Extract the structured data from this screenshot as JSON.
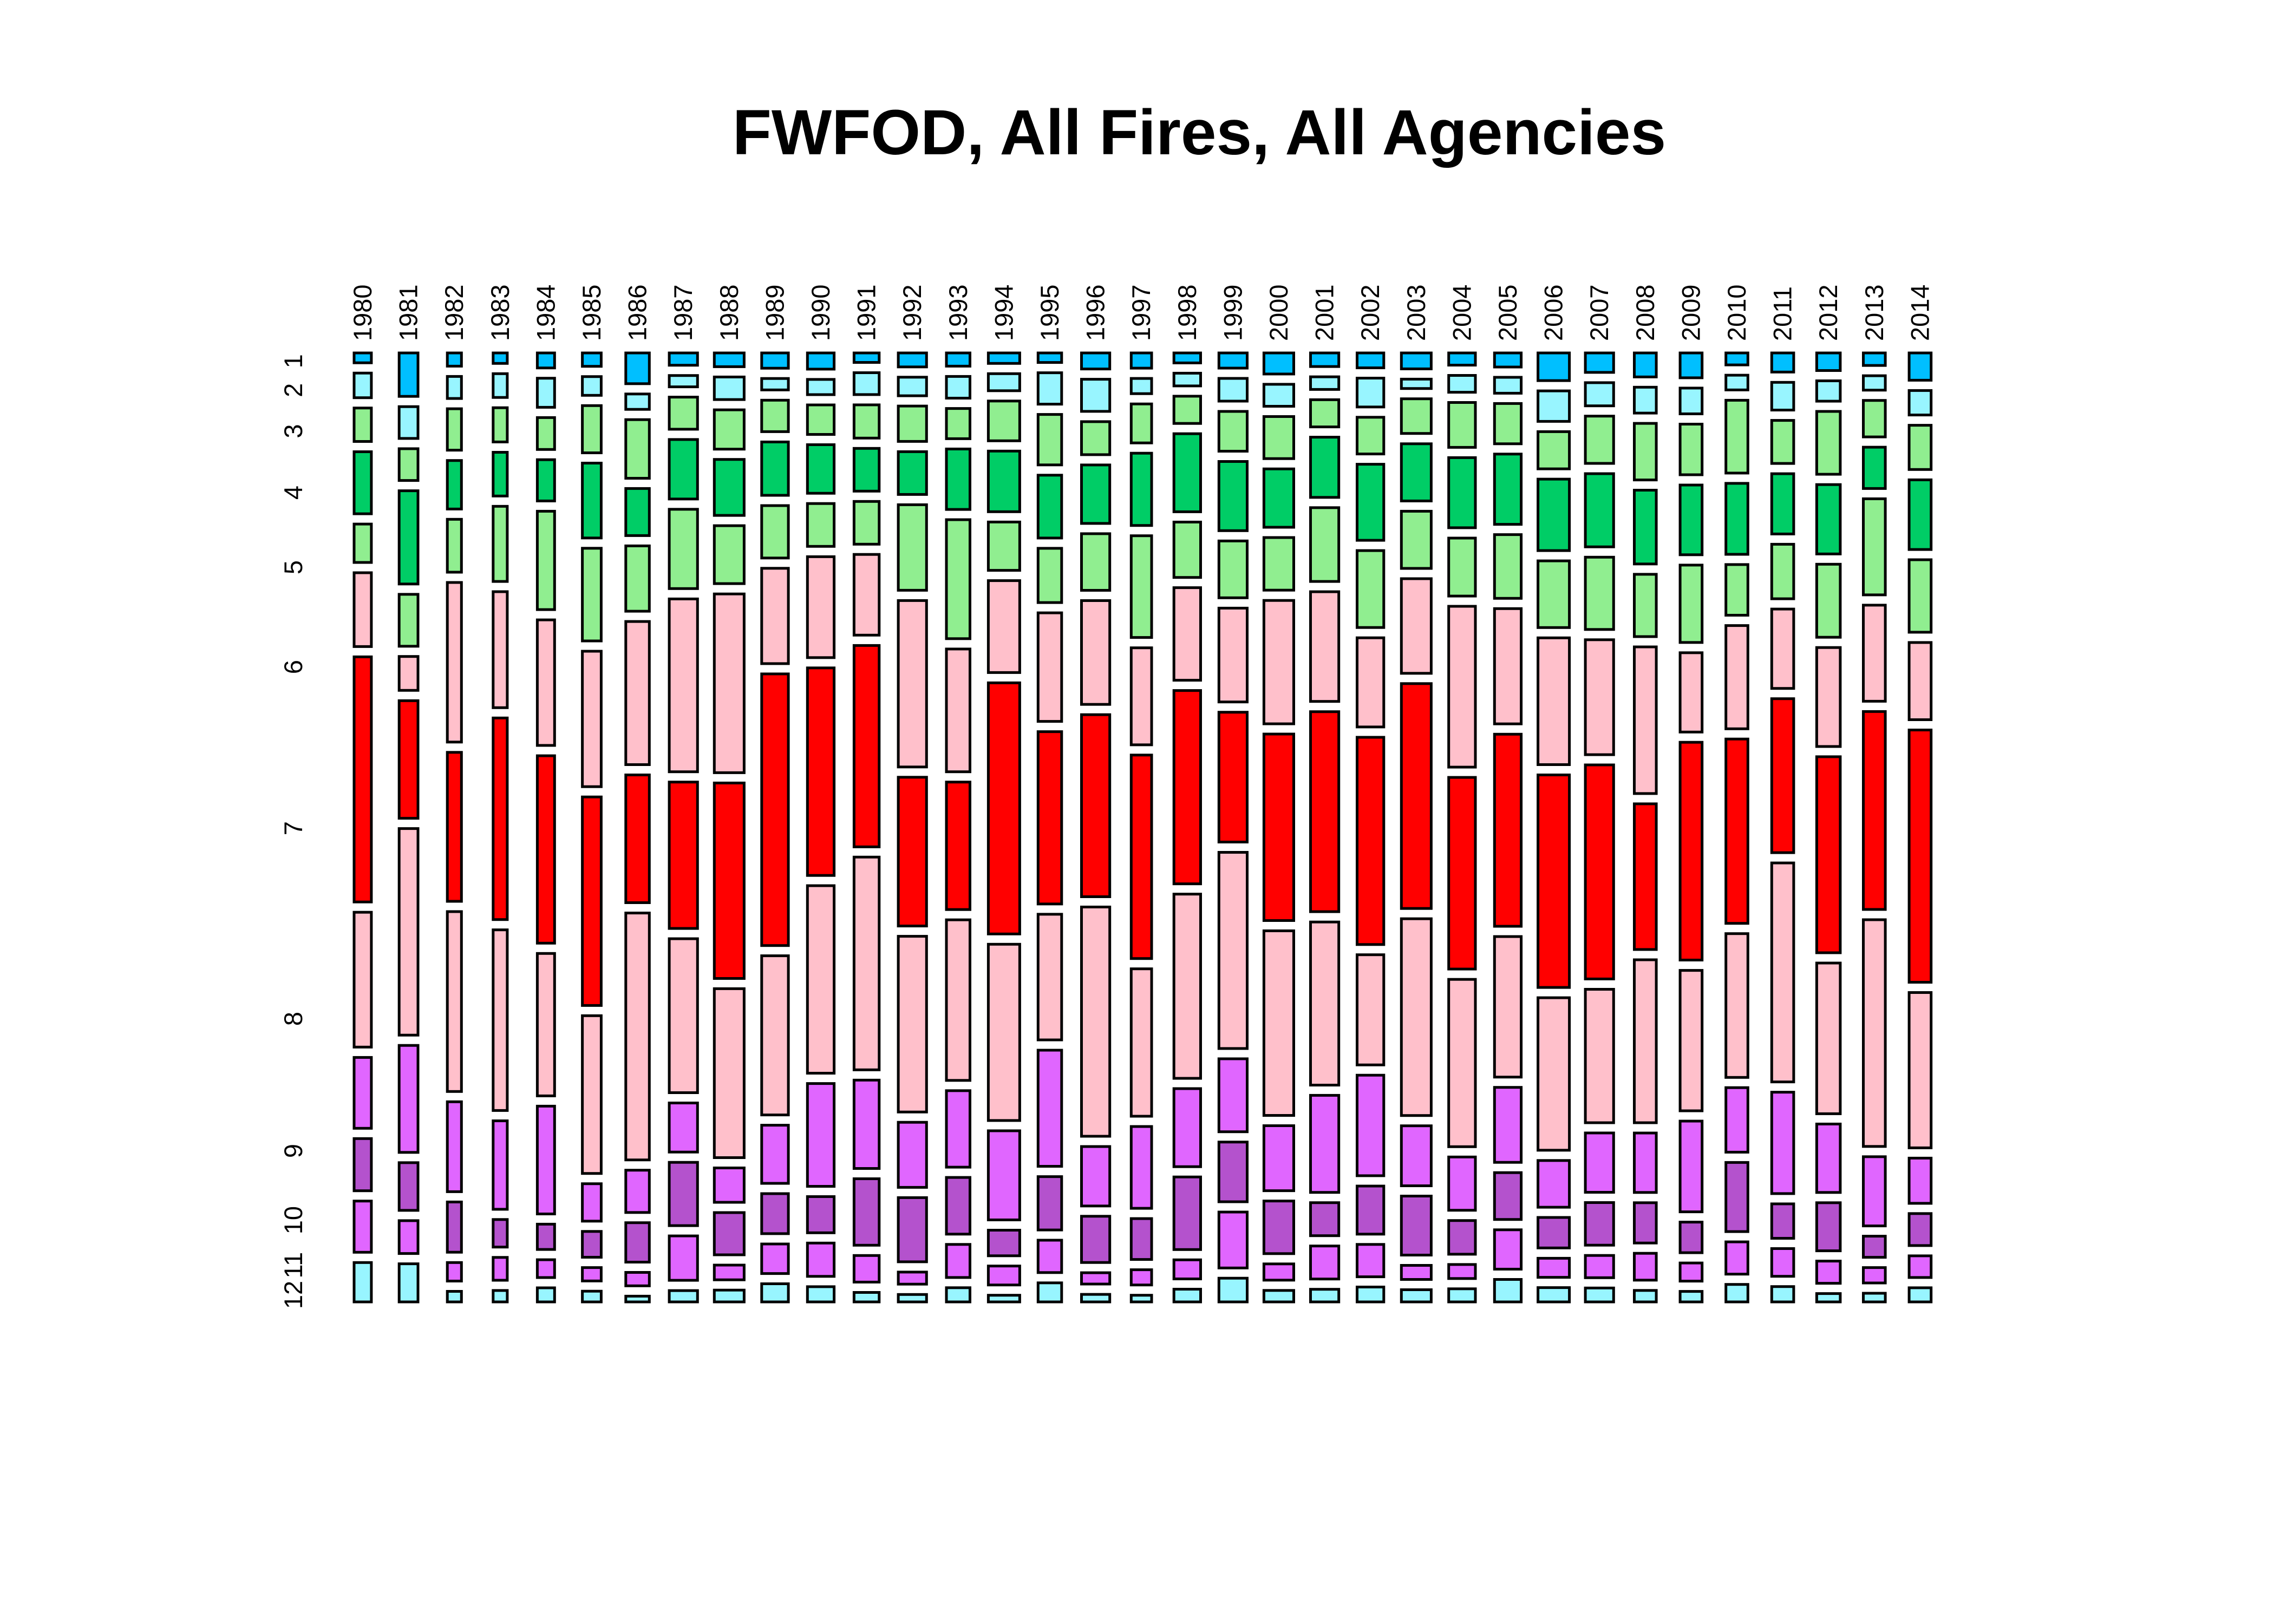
{
  "chart_data": {
    "type": "mosaic",
    "title": "FWFOD, All Fires, All Agencies",
    "x_variable_labels": [
      "1980",
      "1981",
      "1982",
      "1983",
      "1984",
      "1985",
      "1986",
      "1987",
      "1988",
      "1989",
      "1990",
      "1991",
      "1992",
      "1993",
      "1994",
      "1995",
      "1996",
      "1997",
      "1998",
      "1999",
      "2000",
      "2001",
      "2002",
      "2003",
      "2004",
      "2005",
      "2006",
      "2007",
      "2008",
      "2009",
      "2010",
      "2011",
      "2012",
      "2013",
      "2014"
    ],
    "y_variable_labels": [
      "1",
      "2",
      "3",
      "4",
      "5",
      "6",
      "7",
      "8",
      "9",
      "10",
      "11",
      "12"
    ],
    "month_colors": [
      "#00BFFF",
      "#98F5FF",
      "#90EE90",
      "#00CD66",
      "#90EE90",
      "#FFC0CB",
      "#FF0000",
      "#FFC0CB",
      "#E066FF",
      "#B452CD",
      "#E066FF",
      "#98F5FF"
    ],
    "year_weights": [
      0.55,
      0.6,
      0.45,
      0.45,
      0.55,
      0.6,
      0.75,
      0.9,
      0.95,
      0.85,
      0.85,
      0.8,
      0.9,
      0.75,
      1.0,
      0.75,
      0.9,
      0.65,
      0.85,
      0.9,
      0.95,
      0.9,
      0.85,
      0.95,
      0.85,
      0.85,
      1.0,
      0.9,
      0.7,
      0.7,
      0.7,
      0.7,
      0.75,
      0.7,
      0.7
    ],
    "proportions": [
      [
        0.01,
        0.025,
        0.034,
        0.063,
        0.039,
        0.075,
        0.249,
        0.137,
        0.072,
        0.053,
        0.052,
        0.04
      ],
      [
        0.041,
        0.03,
        0.03,
        0.088,
        0.049,
        0.032,
        0.111,
        0.195,
        0.101,
        0.045,
        0.031,
        0.036
      ],
      [
        0.015,
        0.025,
        0.047,
        0.055,
        0.06,
        0.181,
        0.169,
        0.204,
        0.102,
        0.057,
        0.021,
        0.012
      ],
      [
        0.011,
        0.025,
        0.036,
        0.046,
        0.079,
        0.122,
        0.212,
        0.19,
        0.093,
        0.029,
        0.024,
        0.012
      ],
      [
        0.016,
        0.031,
        0.034,
        0.044,
        0.105,
        0.134,
        0.2,
        0.152,
        0.115,
        0.027,
        0.019,
        0.015
      ],
      [
        0.015,
        0.021,
        0.053,
        0.084,
        0.104,
        0.152,
        0.234,
        0.177,
        0.042,
        0.029,
        0.015,
        0.012
      ],
      [
        0.032,
        0.016,
        0.061,
        0.049,
        0.068,
        0.149,
        0.133,
        0.257,
        0.044,
        0.041,
        0.014,
        0.006
      ],
      [
        0.013,
        0.012,
        0.034,
        0.063,
        0.084,
        0.183,
        0.155,
        0.163,
        0.052,
        0.067,
        0.047,
        0.012
      ],
      [
        0.014,
        0.023,
        0.04,
        0.057,
        0.059,
        0.182,
        0.199,
        0.172,
        0.035,
        0.043,
        0.015,
        0.012
      ],
      [
        0.016,
        0.012,
        0.033,
        0.056,
        0.055,
        0.1,
        0.285,
        0.167,
        0.061,
        0.042,
        0.031,
        0.019
      ],
      [
        0.017,
        0.016,
        0.031,
        0.051,
        0.045,
        0.106,
        0.218,
        0.197,
        0.108,
        0.038,
        0.035,
        0.016
      ],
      [
        0.01,
        0.023,
        0.035,
        0.045,
        0.045,
        0.085,
        0.212,
        0.224,
        0.093,
        0.07,
        0.028,
        0.01
      ],
      [
        0.015,
        0.02,
        0.038,
        0.046,
        0.092,
        0.179,
        0.16,
        0.189,
        0.07,
        0.069,
        0.013,
        0.008
      ],
      [
        0.014,
        0.023,
        0.032,
        0.064,
        0.126,
        0.13,
        0.135,
        0.17,
        0.081,
        0.06,
        0.035,
        0.015
      ],
      [
        0.011,
        0.018,
        0.042,
        0.064,
        0.051,
        0.097,
        0.265,
        0.186,
        0.094,
        0.027,
        0.02,
        0.007
      ],
      [
        0.01,
        0.033,
        0.053,
        0.066,
        0.057,
        0.114,
        0.181,
        0.132,
        0.122,
        0.056,
        0.034,
        0.02
      ],
      [
        0.017,
        0.034,
        0.035,
        0.062,
        0.06,
        0.11,
        0.193,
        0.243,
        0.063,
        0.049,
        0.012,
        0.008
      ],
      [
        0.016,
        0.016,
        0.041,
        0.076,
        0.107,
        0.102,
        0.214,
        0.155,
        0.086,
        0.043,
        0.016,
        0.007
      ],
      [
        0.011,
        0.014,
        0.03,
        0.086,
        0.061,
        0.102,
        0.213,
        0.203,
        0.086,
        0.08,
        0.021,
        0.014
      ],
      [
        0.016,
        0.024,
        0.042,
        0.073,
        0.06,
        0.099,
        0.137,
        0.207,
        0.077,
        0.063,
        0.059,
        0.025
      ],
      [
        0.022,
        0.023,
        0.044,
        0.061,
        0.055,
        0.129,
        0.195,
        0.193,
        0.068,
        0.055,
        0.017,
        0.012
      ],
      [
        0.014,
        0.013,
        0.028,
        0.062,
        0.076,
        0.113,
        0.206,
        0.168,
        0.1,
        0.034,
        0.034,
        0.013
      ],
      [
        0.017,
        0.033,
        0.042,
        0.087,
        0.088,
        0.102,
        0.237,
        0.126,
        0.115,
        0.055,
        0.037,
        0.017
      ],
      [
        0.017,
        0.01,
        0.037,
        0.061,
        0.061,
        0.101,
        0.24,
        0.21,
        0.064,
        0.063,
        0.015,
        0.013
      ],
      [
        0.013,
        0.018,
        0.048,
        0.075,
        0.062,
        0.172,
        0.205,
        0.179,
        0.057,
        0.036,
        0.015,
        0.014
      ],
      [
        0.015,
        0.017,
        0.043,
        0.075,
        0.068,
        0.123,
        0.205,
        0.15,
        0.08,
        0.05,
        0.042,
        0.024
      ],
      [
        0.029,
        0.032,
        0.039,
        0.075,
        0.07,
        0.133,
        0.223,
        0.16,
        0.049,
        0.032,
        0.02,
        0.015
      ],
      [
        0.021,
        0.025,
        0.051,
        0.079,
        0.078,
        0.124,
        0.231,
        0.144,
        0.064,
        0.046,
        0.024,
        0.015
      ],
      [
        0.025,
        0.027,
        0.059,
        0.077,
        0.065,
        0.153,
        0.152,
        0.17,
        0.062,
        0.042,
        0.028,
        0.012
      ],
      [
        0.026,
        0.027,
        0.053,
        0.073,
        0.081,
        0.083,
        0.228,
        0.147,
        0.095,
        0.032,
        0.019,
        0.011
      ],
      [
        0.013,
        0.016,
        0.079,
        0.077,
        0.055,
        0.112,
        0.2,
        0.156,
        0.07,
        0.075,
        0.035,
        0.019
      ],
      [
        0.02,
        0.029,
        0.045,
        0.063,
        0.057,
        0.083,
        0.161,
        0.229,
        0.106,
        0.036,
        0.029,
        0.016
      ],
      [
        0.019,
        0.022,
        0.068,
        0.075,
        0.079,
        0.107,
        0.212,
        0.163,
        0.074,
        0.052,
        0.024,
        0.009
      ],
      [
        0.013,
        0.015,
        0.038,
        0.043,
        0.1,
        0.1,
        0.206,
        0.236,
        0.072,
        0.022,
        0.016,
        0.009
      ],
      [
        0.029,
        0.026,
        0.047,
        0.074,
        0.077,
        0.082,
        0.268,
        0.165,
        0.048,
        0.034,
        0.023,
        0.015
      ]
    ]
  }
}
